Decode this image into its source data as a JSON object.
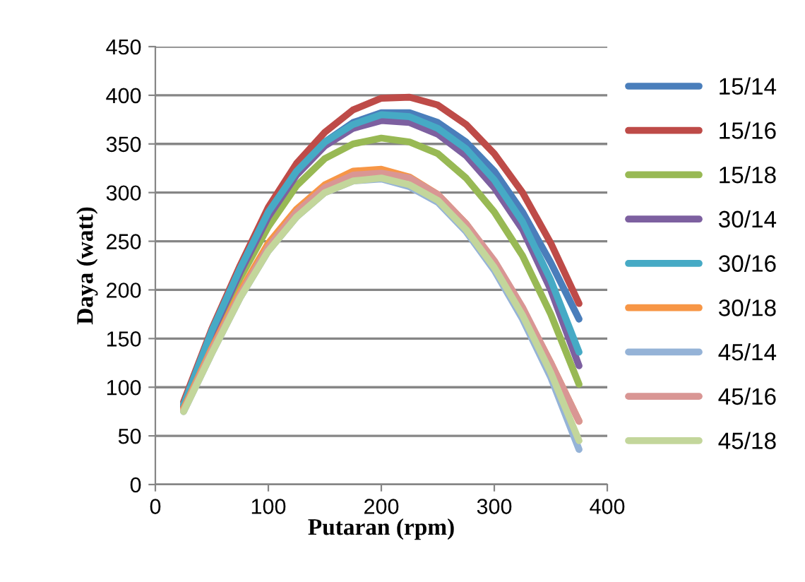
{
  "chart_data": {
    "type": "line",
    "xlabel": "Putaran (rpm)",
    "ylabel": "Daya (watt)",
    "x": [
      25,
      50,
      75,
      100,
      125,
      150,
      175,
      200,
      225,
      250,
      275,
      300,
      325,
      350,
      375
    ],
    "xlim": [
      0,
      400
    ],
    "xticks": [
      0,
      100,
      200,
      300,
      400
    ],
    "ylim": [
      0,
      450
    ],
    "yticks": [
      0,
      50,
      100,
      150,
      200,
      250,
      300,
      350,
      400,
      450
    ],
    "grid": "y",
    "legend": "right",
    "marker": "none",
    "line_style": "solid",
    "series": [
      {
        "name": "15/14",
        "color": "#4a7ebb",
        "values": [
          82,
          158,
          222,
          280,
          322,
          352,
          372,
          382,
          382,
          372,
          352,
          322,
          280,
          228,
          170
        ]
      },
      {
        "name": "15/16",
        "color": "#be4b48",
        "values": [
          85,
          160,
          225,
          285,
          330,
          362,
          385,
          397,
          398,
          390,
          370,
          340,
          300,
          248,
          186
        ]
      },
      {
        "name": "15/18",
        "color": "#98b954",
        "values": [
          80,
          150,
          212,
          265,
          307,
          335,
          350,
          356,
          352,
          340,
          315,
          280,
          235,
          175,
          103
        ]
      },
      {
        "name": "30/14",
        "color": "#7d60a0",
        "values": [
          80,
          155,
          218,
          275,
          318,
          348,
          366,
          374,
          372,
          360,
          338,
          305,
          262,
          200,
          122
        ]
      },
      {
        "name": "30/16",
        "color": "#46aac5",
        "values": [
          82,
          158,
          222,
          280,
          322,
          352,
          370,
          380,
          378,
          366,
          345,
          313,
          270,
          210,
          136
        ]
      },
      {
        "name": "30/18",
        "color": "#f79646",
        "values": [
          78,
          140,
          198,
          248,
          283,
          308,
          322,
          324,
          316,
          298,
          268,
          228,
          180,
          125,
          65
        ]
      },
      {
        "name": "45/14",
        "color": "#95b3d7",
        "values": [
          75,
          135,
          192,
          240,
          275,
          300,
          312,
          314,
          306,
          290,
          260,
          220,
          170,
          110,
          36
        ]
      },
      {
        "name": "45/16",
        "color": "#d99694",
        "values": [
          76,
          138,
          195,
          244,
          280,
          305,
          318,
          320,
          315,
          298,
          268,
          230,
          182,
          125,
          65
        ]
      },
      {
        "name": "45/18",
        "color": "#c3d69b",
        "values": [
          75,
          135,
          192,
          240,
          275,
          300,
          312,
          315,
          308,
          292,
          262,
          223,
          174,
          115,
          45
        ]
      }
    ]
  }
}
